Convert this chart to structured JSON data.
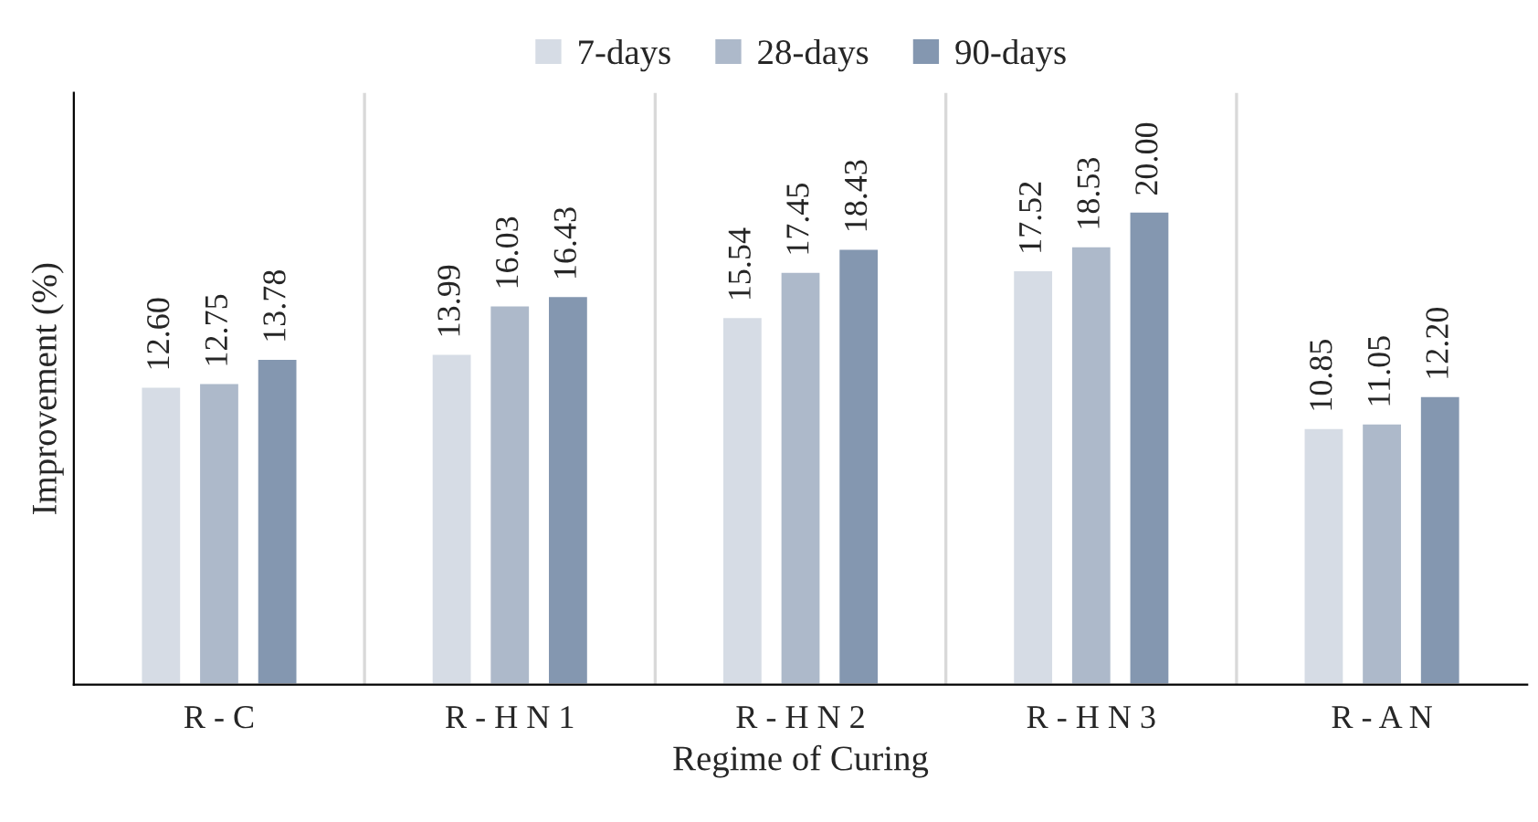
{
  "chart_data": {
    "type": "bar",
    "xlabel": "Regime of Curing",
    "ylabel": "Improvement (%)",
    "categories": [
      "R - C",
      "R - H N 1",
      "R - H N 2",
      "R - H N 3",
      "R - A N"
    ],
    "series": [
      {
        "name": "7-days",
        "color": "#d6dce5",
        "values": [
          12.6,
          13.99,
          15.54,
          17.52,
          10.85
        ],
        "value_labels": [
          "12.60",
          "13.99",
          "15.54",
          "17.52",
          "10.85"
        ]
      },
      {
        "name": "28-days",
        "color": "#adb9ca",
        "values": [
          12.75,
          16.03,
          17.45,
          18.53,
          11.05
        ],
        "value_labels": [
          "12.75",
          "16.03",
          "17.45",
          "18.53",
          "11.05"
        ]
      },
      {
        "name": "90-days",
        "color": "#8497b0",
        "values": [
          13.78,
          16.43,
          18.43,
          20.0,
          12.2
        ],
        "value_labels": [
          "13.78",
          "16.43",
          "18.43",
          "20.00",
          "12.20"
        ]
      }
    ],
    "ylim": [
      0,
      25
    ],
    "legend": "top",
    "grid": "x",
    "tick_labels": "x"
  }
}
